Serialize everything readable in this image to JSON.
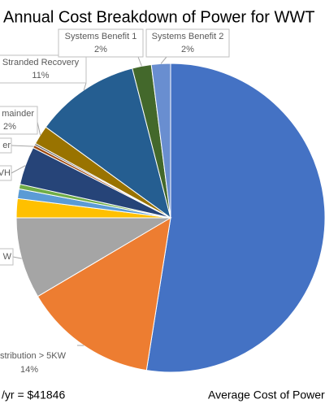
{
  "chart_data": {
    "type": "pie",
    "title": "Annual Cost Breakdown of Power for WWT",
    "categories": [
      null,
      "stribution > 5KW",
      "W",
      null,
      null,
      null,
      "VH",
      "er",
      null,
      "mainder",
      "Stranded Recovery",
      "Systems Benefit 1",
      "Systems Benefit 2"
    ],
    "values": [
      52.5,
      14,
      8.5,
      2,
      1,
      0.5,
      4,
      0.3,
      0.2,
      2,
      11,
      2,
      2
    ],
    "value_labels": [
      null,
      "14%",
      null,
      null,
      null,
      null,
      null,
      null,
      null,
      "2%",
      "11%",
      "2%",
      "2%"
    ],
    "colors": [
      "#4472c4",
      "#ed7d31",
      "#a5a5a5",
      "#ffc000",
      "#5b9bd5",
      "#70ad47",
      "#264478",
      "#9e480e",
      "#636363",
      "#997300",
      "#255e91",
      "#43682b",
      "#698ed0"
    ],
    "annotations": [
      "/yr = $41846",
      "Average Cost of Power"
    ]
  }
}
